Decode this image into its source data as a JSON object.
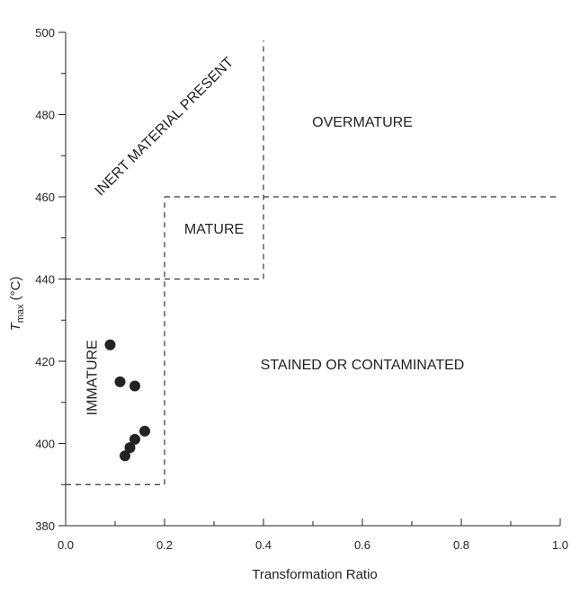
{
  "chart_data": {
    "type": "scatter",
    "title": "",
    "xlabel": "Transformation Ratio",
    "ylabel_main": "T",
    "ylabel_sub": "max",
    "ylabel_unit": " (°C)",
    "xlim": [
      0.0,
      1.0
    ],
    "ylim": [
      380,
      500
    ],
    "x_ticks": [
      {
        "value": 0.0,
        "label": "0.0"
      },
      {
        "value": 0.2,
        "label": "0.2"
      },
      {
        "value": 0.4,
        "label": "0.4"
      },
      {
        "value": 0.6,
        "label": "0.6"
      },
      {
        "value": 0.8,
        "label": "0.8"
      },
      {
        "value": 1.0,
        "label": "1.0"
      }
    ],
    "x_minor_ticks": [
      0.1,
      0.3,
      0.5,
      0.7,
      0.9
    ],
    "y_ticks": [
      {
        "value": 380,
        "label": "380"
      },
      {
        "value": 400,
        "label": "400"
      },
      {
        "value": 420,
        "label": "420"
      },
      {
        "value": 440,
        "label": "440"
      },
      {
        "value": 460,
        "label": "460"
      },
      {
        "value": 480,
        "label": "480"
      },
      {
        "value": 500,
        "label": "500"
      }
    ],
    "y_minor_ticks": [
      390,
      410,
      430,
      450,
      470,
      490
    ],
    "points": [
      {
        "x": 0.09,
        "y": 424
      },
      {
        "x": 0.11,
        "y": 415
      },
      {
        "x": 0.14,
        "y": 414
      },
      {
        "x": 0.16,
        "y": 403
      },
      {
        "x": 0.14,
        "y": 401
      },
      {
        "x": 0.13,
        "y": 399
      },
      {
        "x": 0.12,
        "y": 397
      }
    ],
    "boundaries": [
      {
        "name": "immature-bottom",
        "x1": 0.0,
        "y1": 390,
        "x2": 0.2,
        "y2": 390
      },
      {
        "name": "immature-right",
        "x1": 0.2,
        "y1": 390,
        "x2": 0.2,
        "y2": 460
      },
      {
        "name": "immature-top",
        "x1": 0.0,
        "y1": 440,
        "x2": 0.4,
        "y2": 440
      },
      {
        "name": "mature-top",
        "x1": 0.2,
        "y1": 460,
        "x2": 1.0,
        "y2": 460
      },
      {
        "name": "inert-right",
        "x1": 0.4,
        "y1": 440,
        "x2": 0.4,
        "y2": 498
      }
    ],
    "regions": [
      {
        "name": "overmature",
        "label": "OVERMATURE",
        "x": 0.6,
        "y": 478,
        "rotate": 0
      },
      {
        "name": "mature",
        "label": "MATURE",
        "x": 0.3,
        "y": 452,
        "rotate": 0
      },
      {
        "name": "stained",
        "label": "STAINED OR CONTAMINATED",
        "x": 0.6,
        "y": 419,
        "rotate": 0
      },
      {
        "name": "immature",
        "label": "IMMATURE",
        "x": 0.055,
        "y": 416,
        "rotate": -90
      },
      {
        "name": "inert",
        "label": "INERT MATERIAL PRESENT",
        "x": 0.2,
        "y": 477,
        "rotate": -45
      }
    ],
    "grid": false,
    "legend": "none"
  }
}
